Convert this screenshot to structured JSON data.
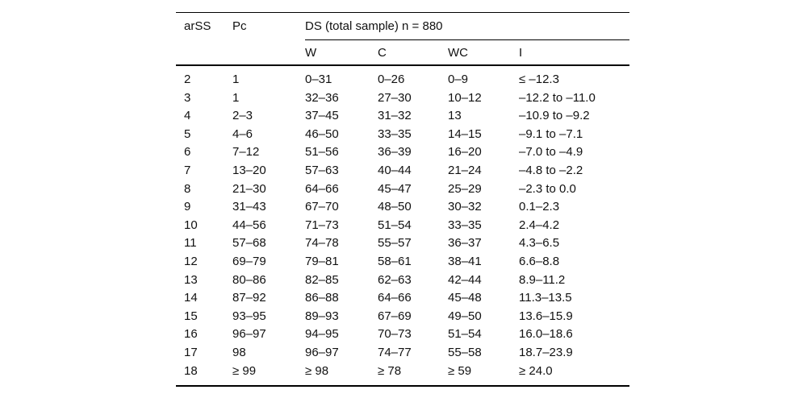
{
  "page": {
    "background_color": "#ffffff",
    "text_color": "#111111",
    "rule_color": "#000000"
  },
  "table": {
    "headers": {
      "arss": "arSS",
      "pc": "Pc",
      "group": "DS (total sample) n = 880"
    },
    "subheaders": [
      "W",
      "C",
      "WC",
      "I"
    ],
    "rows": [
      [
        "2",
        "1",
        "0–31",
        "0–26",
        "0–9",
        "≤ –12.3"
      ],
      [
        "3",
        "1",
        "32–36",
        "27–30",
        "10–12",
        "–12.2 to –11.0"
      ],
      [
        "4",
        "2–3",
        "37–45",
        "31–32",
        "13",
        "–10.9 to –9.2"
      ],
      [
        "5",
        "4–6",
        "46–50",
        "33–35",
        "14–15",
        "–9.1 to –7.1"
      ],
      [
        "6",
        "7–12",
        "51–56",
        "36–39",
        "16–20",
        "–7.0 to –4.9"
      ],
      [
        "7",
        "13–20",
        "57–63",
        "40–44",
        "21–24",
        "–4.8 to –2.2"
      ],
      [
        "8",
        "21–30",
        "64–66",
        "45–47",
        "25–29",
        "–2.3 to 0.0"
      ],
      [
        "9",
        "31–43",
        "67–70",
        "48–50",
        "30–32",
        "0.1–2.3"
      ],
      [
        "10",
        "44–56",
        "71–73",
        "51–54",
        "33–35",
        "2.4–4.2"
      ],
      [
        "11",
        "57–68",
        "74–78",
        "55–57",
        "36–37",
        "4.3–6.5"
      ],
      [
        "12",
        "69–79",
        "79–81",
        "58–61",
        "38–41",
        "6.6–8.8"
      ],
      [
        "13",
        "80–86",
        "82–85",
        "62–63",
        "42–44",
        "8.9–11.2"
      ],
      [
        "14",
        "87–92",
        "86–88",
        "64–66",
        "45–48",
        "11.3–13.5"
      ],
      [
        "15",
        "93–95",
        "89–93",
        "67–69",
        "49–50",
        "13.6–15.9"
      ],
      [
        "16",
        "96–97",
        "94–95",
        "70–73",
        "51–54",
        "16.0–18.6"
      ],
      [
        "17",
        "98",
        "96–97",
        "74–77",
        "55–58",
        "18.7–23.9"
      ],
      [
        "18",
        "≥ 99",
        "≥ 98",
        "≥ 78",
        "≥ 59",
        "≥ 24.0"
      ]
    ]
  }
}
